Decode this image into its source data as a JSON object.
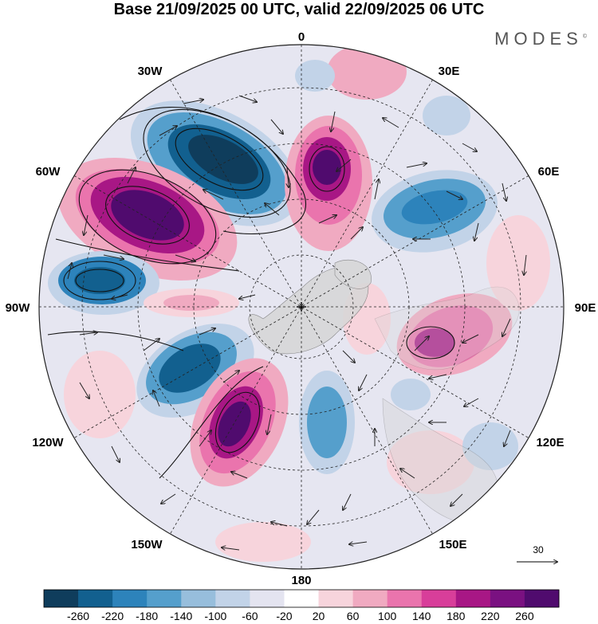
{
  "title": "Base 21/09/2025 00 UTC, valid 22/09/2025 06 UTC",
  "brand": "MODES",
  "brand_mark": "©",
  "longitude_labels": {
    "n0": "0",
    "e30": "30E",
    "e60": "60E",
    "e90": "90E",
    "e120": "120E",
    "e150": "150E",
    "s180": "180",
    "w150": "150W",
    "w120": "120W",
    "w90": "90W",
    "w60": "60W",
    "w30": "30W"
  },
  "vector_reference": "30",
  "colorbar": {
    "ticks": [
      "-260",
      "-220",
      "-180",
      "-140",
      "-100",
      "-60",
      "-20",
      "20",
      "60",
      "100",
      "140",
      "180",
      "220",
      "260"
    ],
    "colors": [
      "#0f3d5c",
      "#12608f",
      "#2d83bb",
      "#559fcc",
      "#97bedc",
      "#c2d3e8",
      "#e4e4f0",
      "#ffffff",
      "#f7d4dc",
      "#f0aac1",
      "#ea74ad",
      "#d83e9a",
      "#a81785",
      "#7a1181",
      "#500b6e"
    ]
  },
  "anomalies": [
    {
      "name": "anomaly-negative-north-atlantic",
      "value": -260
    },
    {
      "name": "anomaly-positive-labrador",
      "value": 260
    },
    {
      "name": "anomaly-positive-scandinavia",
      "value": 260
    },
    {
      "name": "anomaly-negative-west-siberia",
      "value": -140
    },
    {
      "name": "anomaly-negative-pacific-east",
      "value": -220
    },
    {
      "name": "anomaly-positive-east-siberia",
      "value": 220
    },
    {
      "name": "anomaly-negative-gulf-alaska",
      "value": -220
    },
    {
      "name": "anomaly-positive-bering",
      "value": 260
    },
    {
      "name": "anomaly-negative-chukchi",
      "value": -140
    }
  ]
}
